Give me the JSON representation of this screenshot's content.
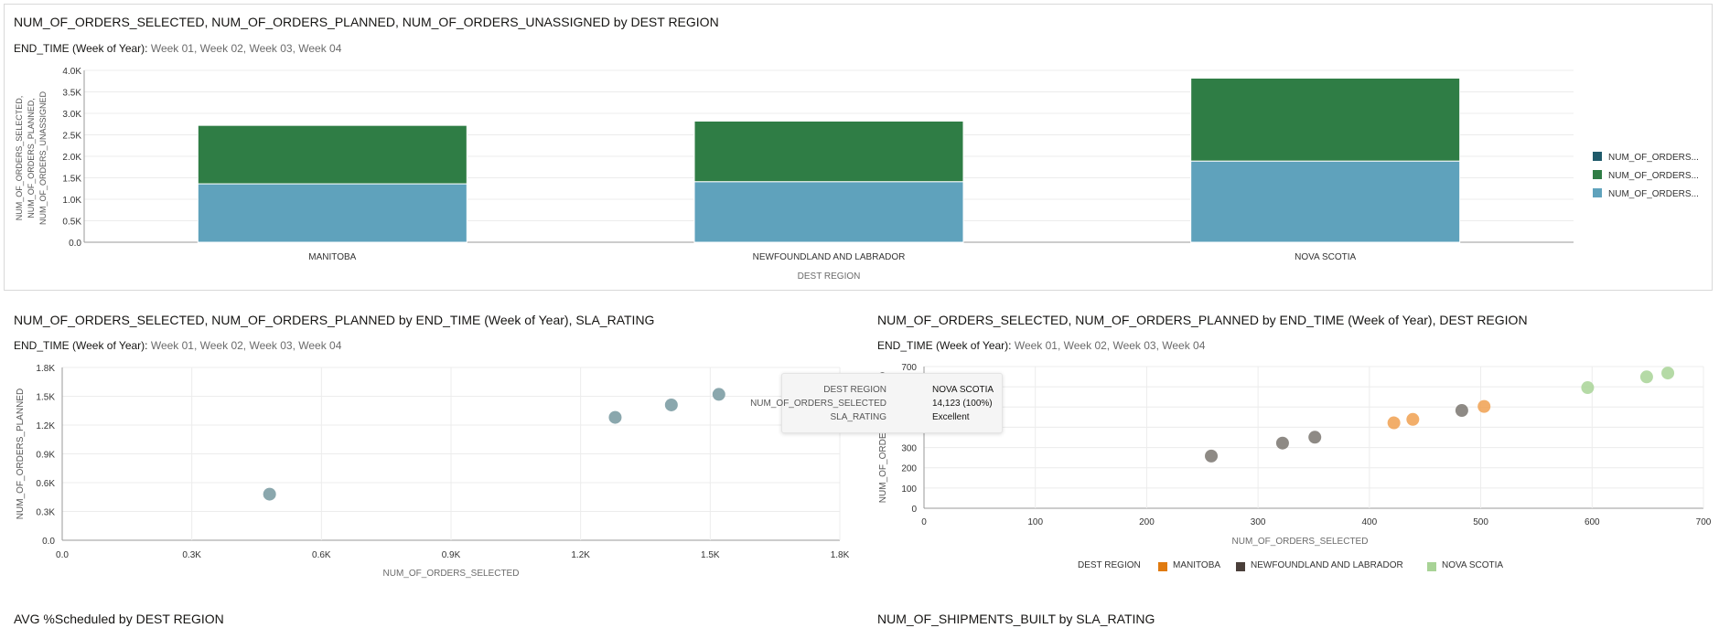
{
  "charts": {
    "top": {
      "title": "NUM_OF_ORDERS_SELECTED, NUM_OF_ORDERS_PLANNED, NUM_OF_ORDERS_UNASSIGNED by DEST REGION",
      "filter_label": "END_TIME (Week of Year):",
      "filter_value": "Week 01, Week 02, Week 03, Week 04"
    },
    "middle_left": {
      "title": "NUM_OF_ORDERS_SELECTED, NUM_OF_ORDERS_PLANNED by END_TIME (Week of Year), SLA_RATING",
      "filter_label": "END_TIME (Week of Year):",
      "filter_value": "Week 01, Week 02, Week 03, Week 04"
    },
    "middle_right": {
      "title": "NUM_OF_ORDERS_SELECTED, NUM_OF_ORDERS_PLANNED by END_TIME (Week of Year), DEST REGION",
      "filter_label": "END_TIME (Week of Year):",
      "filter_value": "Week 01, Week 02, Week 03, Week 04"
    },
    "bottom_left": {
      "title": "AVG %Scheduled by DEST REGION"
    },
    "bottom_right": {
      "title": "NUM_OF_SHIPMENTS_BUILT by SLA_RATING"
    }
  },
  "tooltip": {
    "rows": [
      {
        "key": "DEST REGION",
        "value": "NOVA SCOTIA"
      },
      {
        "key": "NUM_OF_ORDERS_SELECTED",
        "value": "14,123 (100%)"
      },
      {
        "key": "SLA_RATING",
        "value": "Excellent"
      }
    ]
  },
  "colors": {
    "green": "#2f7d45",
    "blue": "#5fa2bc",
    "darkteal": "#1f5a6a",
    "scatter": "#8aa7ad",
    "manitoba": "#f0a050",
    "manitoba_legend": "#e07a10",
    "nl": "#7a7670",
    "nl_legend": "#4a3f3a",
    "ns": "#a8d396"
  },
  "chart_data": [
    {
      "type": "bar",
      "stacked": true,
      "categories": [
        "MANITOBA",
        "NEWFOUNDLAND AND LABRADOR",
        "NOVA SCOTIA"
      ],
      "series": [
        {
          "name": "NUM_OF_ORDERS...",
          "values": [
            1360,
            1410,
            1890
          ],
          "color": "#5fa2bc"
        },
        {
          "name": "NUM_OF_ORDERS...",
          "values": [
            1360,
            1410,
            1930
          ],
          "color": "#2f7d45"
        },
        {
          "name": "NUM_OF_ORDERS...",
          "values": [
            0,
            0,
            0
          ],
          "color": "#1f5a6a"
        }
      ],
      "xlabel": "DEST REGION",
      "ylabel": [
        "NUM_OF_ORDERS_SELECTED,",
        "NUM_OF_ORDERS_PLANNED,",
        "NUM_OF_ORDERS_UNASSIGNED"
      ],
      "ylim": [
        0,
        4000
      ],
      "yticks": [
        "0.0",
        "0.5K",
        "1.0K",
        "1.5K",
        "2.0K",
        "2.5K",
        "3.0K",
        "3.5K",
        "4.0K"
      ],
      "grid": true,
      "legend_position": "right"
    },
    {
      "type": "scatter",
      "points": [
        {
          "x": 480,
          "y": 480
        },
        {
          "x": 1280,
          "y": 1280
        },
        {
          "x": 1410,
          "y": 1410
        },
        {
          "x": 1520,
          "y": 1520
        }
      ],
      "xlabel": "NUM_OF_ORDERS_SELECTED",
      "ylabel": "NUM_OF_ORDERS_PLANNED",
      "xlim": [
        0,
        1800
      ],
      "ylim": [
        0,
        1800
      ],
      "xticks": [
        "0.0",
        "0.3K",
        "0.6K",
        "0.9K",
        "1.2K",
        "1.5K",
        "1.8K"
      ],
      "yticks": [
        "0.0",
        "0.3K",
        "0.6K",
        "0.9K",
        "1.2K",
        "1.5K",
        "1.8K"
      ],
      "grid": true
    },
    {
      "type": "scatter",
      "series": [
        {
          "name": "MANITOBA",
          "points": [
            {
              "x": 422,
              "y": 422
            },
            {
              "x": 439,
              "y": 439
            },
            {
              "x": 503,
              "y": 503
            }
          ]
        },
        {
          "name": "NEWFOUNDLAND AND LABRADOR",
          "points": [
            {
              "x": 258,
              "y": 258
            },
            {
              "x": 322,
              "y": 322
            },
            {
              "x": 351,
              "y": 351
            },
            {
              "x": 483,
              "y": 483
            }
          ]
        },
        {
          "name": "NOVA SCOTIA",
          "points": [
            {
              "x": 596,
              "y": 596
            },
            {
              "x": 649,
              "y": 649
            },
            {
              "x": 668,
              "y": 668
            }
          ]
        }
      ],
      "xlabel": "NUM_OF_ORDERS_SELECTED",
      "ylabel": "NUM_OF_ORDERS_PLANNED",
      "xlim": [
        0,
        700
      ],
      "ylim": [
        0,
        700
      ],
      "xticks": [
        "0",
        "100",
        "200",
        "300",
        "400",
        "500",
        "600",
        "700"
      ],
      "yticks": [
        "0",
        "100",
        "200",
        "300",
        "400",
        "500",
        "600",
        "700"
      ],
      "legend_title": "DEST REGION",
      "legend_position": "bottom",
      "grid": true
    }
  ]
}
